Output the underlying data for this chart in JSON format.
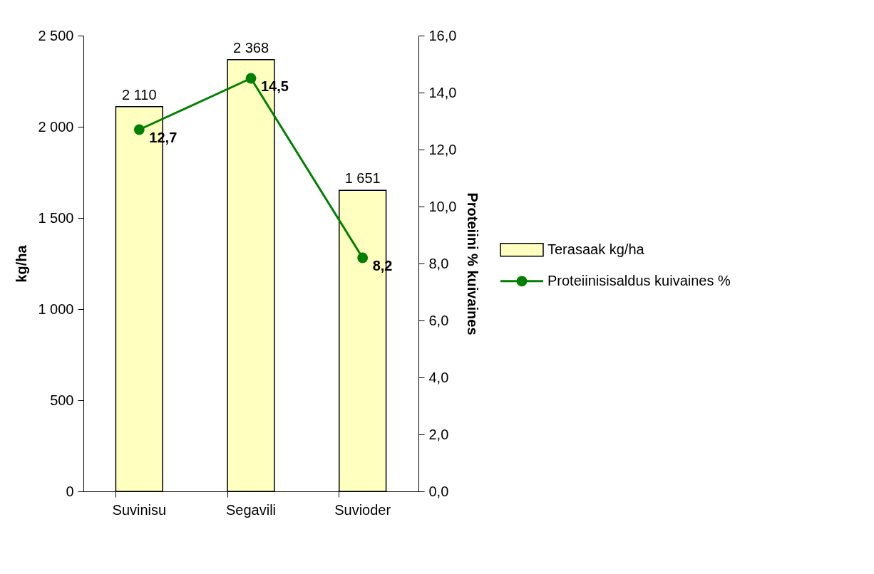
{
  "chart_data": {
    "type": "bar",
    "categories": [
      "Suvinisu",
      "Segavili",
      "Suvioder"
    ],
    "ylabel": "kg/ha",
    "y2label": "Proteiini % kuivaines",
    "ylim": [
      0,
      2500
    ],
    "yticks": [
      0,
      500,
      {
        "value": 1000,
        "label": "1 000"
      },
      {
        "value": 1500,
        "label": "1 500"
      },
      {
        "value": 2000,
        "label": "2 000"
      },
      {
        "value": 2500,
        "label": "2 500"
      }
    ],
    "y2lim": [
      0,
      16
    ],
    "y2ticks": [
      {
        "value": 0,
        "label": "0,0"
      },
      {
        "value": 2,
        "label": "2,0"
      },
      {
        "value": 4,
        "label": "4,0"
      },
      {
        "value": 6,
        "label": "6,0"
      },
      {
        "value": 8,
        "label": "8,0"
      },
      {
        "value": 10,
        "label": "10,0"
      },
      {
        "value": 12,
        "label": "12,0"
      },
      {
        "value": 14,
        "label": "14,0"
      },
      {
        "value": 16,
        "label": "16,0"
      }
    ],
    "series": [
      {
        "name": "Terasaak kg/ha",
        "color": "#ffffc0",
        "values": [
          2110,
          2368,
          1651
        ],
        "value_labels": [
          "2 110",
          "2 368",
          "1 651"
        ]
      },
      {
        "name": "Proteiinisisaldus kuivaines %",
        "type": "line",
        "axis": "y2",
        "color": "#008000",
        "marker": "circle",
        "values": [
          12.7,
          14.5,
          8.2
        ],
        "value_labels": [
          "12,7",
          "14,5",
          "8,2"
        ]
      }
    ],
    "legend": "right",
    "grid": false
  }
}
